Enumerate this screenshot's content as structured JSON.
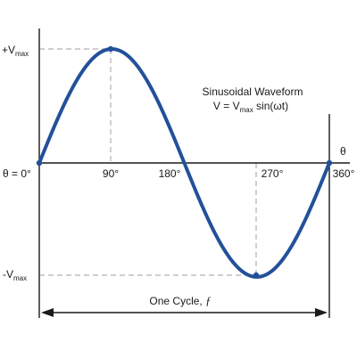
{
  "colors": {
    "wave": "#23509a",
    "axis": "#1a1a1a",
    "dashed": "#b0b0b0"
  },
  "labels": {
    "vmax_pos_main": "+V",
    "vmax_pos_sub": "max",
    "vmax_neg_main": "-V",
    "vmax_neg_sub": "max",
    "theta_zero": "θ = 0°",
    "theta_axis": "θ",
    "tick_90": "90°",
    "tick_180": "180°",
    "tick_270": "270°",
    "tick_360": "360°",
    "title_line1": "Sinusoidal Waveform",
    "eq_prefix": "V = V",
    "eq_sub": "max",
    "eq_suffix": " sin(ωt)",
    "cycle_label": "One Cycle, ",
    "cycle_symbol": "ƒ"
  }
}
